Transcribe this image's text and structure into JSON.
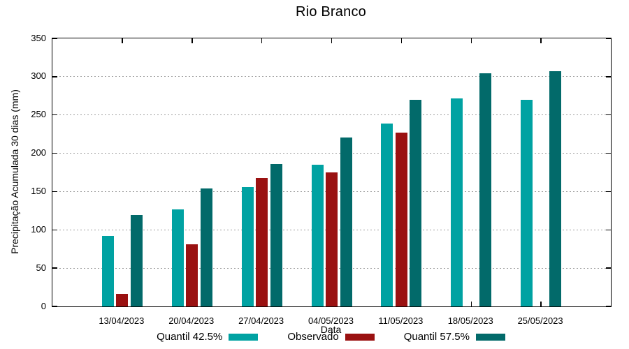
{
  "title": "Rio Branco",
  "axes": {
    "ylabel": "Precipitação Acumulada 30 dias (mm)",
    "xlabel": "Data",
    "yticks": [
      0,
      50,
      100,
      150,
      200,
      250,
      300,
      350
    ]
  },
  "chart_data": {
    "type": "bar",
    "title": "Rio Branco",
    "xlabel": "Data",
    "ylabel": "Precipitação Acumulada 30 dias (mm)",
    "ylim": [
      0,
      350
    ],
    "ytick_step": 50,
    "yticks": [
      0,
      50,
      100,
      150,
      200,
      250,
      300,
      350
    ],
    "grid": true,
    "grid_style": "dashed-gray",
    "legend_position": "bottom",
    "categories": [
      "13/04/2023",
      "20/04/2023",
      "27/04/2023",
      "04/05/2023",
      "11/05/2023",
      "18/05/2023",
      "25/05/2023"
    ],
    "series": [
      {
        "name": "Quantil 42.5%",
        "color": "#00a2a2",
        "values": [
          92,
          127,
          156,
          185,
          239,
          272,
          270
        ]
      },
      {
        "name": "Observado",
        "color": "#9a1111",
        "values": [
          16,
          81,
          168,
          175,
          227,
          null,
          null
        ]
      },
      {
        "name": "Quantil 57.5%",
        "color": "#026a6a",
        "values": [
          119,
          154,
          186,
          221,
          270,
          304,
          307
        ]
      }
    ]
  }
}
